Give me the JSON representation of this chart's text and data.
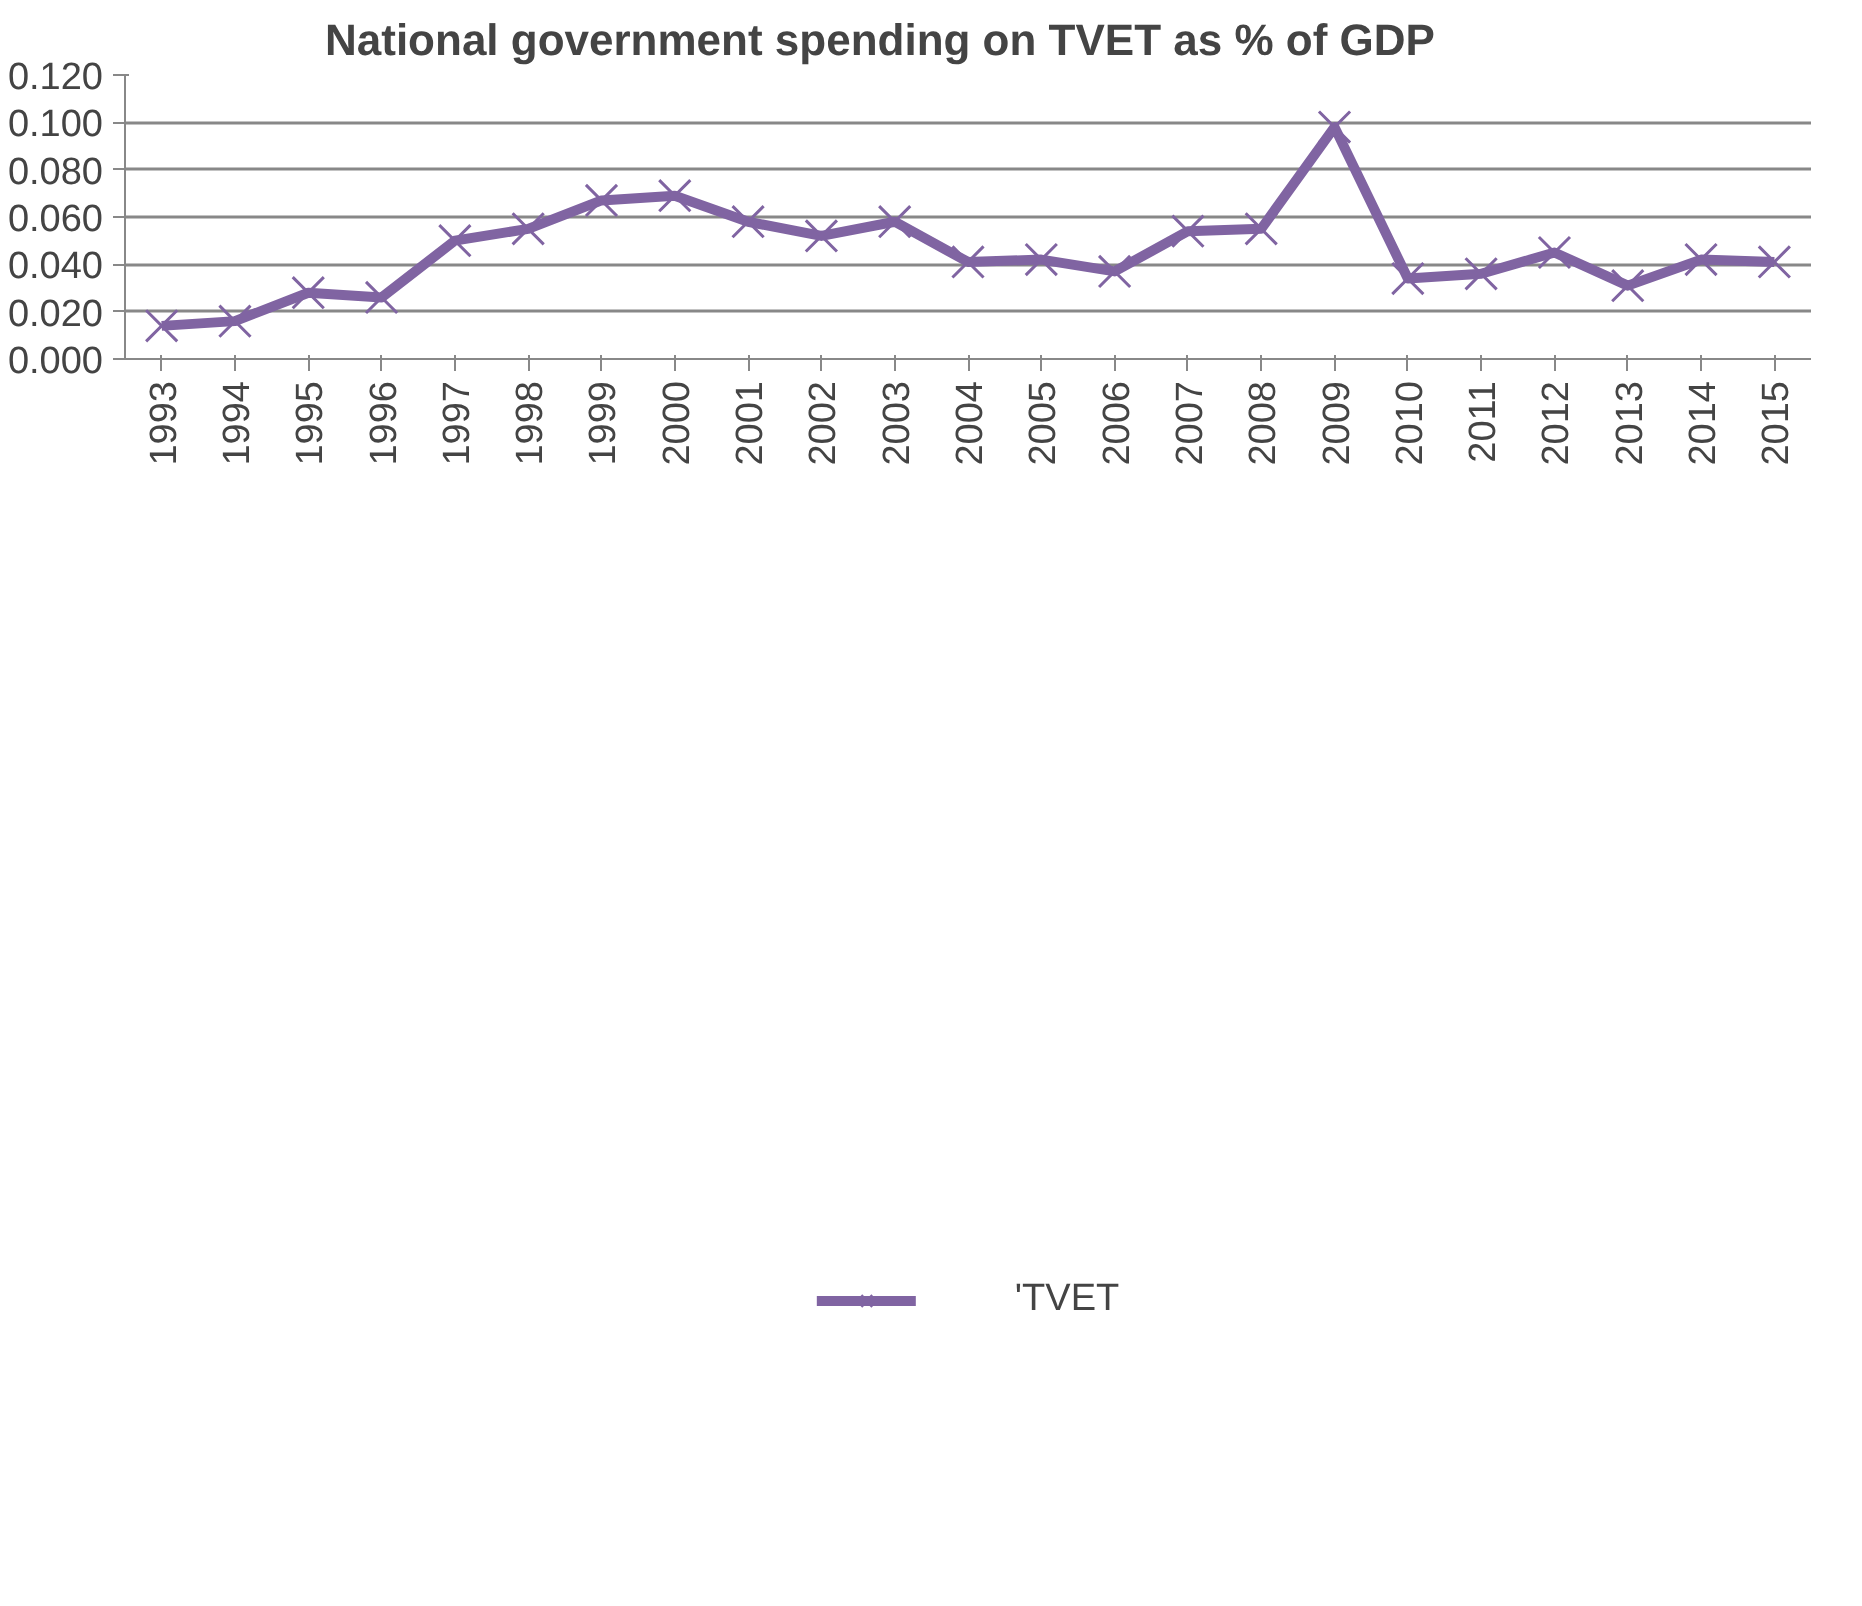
{
  "chart_data": {
    "type": "line",
    "title": "National government spending on TVET as % of GDP",
    "categories": [
      "1993",
      "1994",
      "1995",
      "1996",
      "1997",
      "1998",
      "1999",
      "2000",
      "2001",
      "2002",
      "2003",
      "2004",
      "2005",
      "2006",
      "2007",
      "2008",
      "2009",
      "2010",
      "2011",
      "2012",
      "2013",
      "2014",
      "2015"
    ],
    "series": [
      {
        "name": "'TVET",
        "color": "#8064a2",
        "values": [
          0.014,
          0.016,
          0.028,
          0.026,
          0.05,
          0.055,
          0.067,
          0.069,
          0.058,
          0.052,
          0.058,
          0.041,
          0.042,
          0.037,
          0.054,
          0.055,
          0.098,
          0.034,
          0.036,
          0.045,
          0.031,
          0.042,
          0.041
        ]
      }
    ],
    "ylim": [
      0,
      0.12
    ],
    "yticks": [
      {
        "value": 0,
        "label": "0.000"
      },
      {
        "value": 0.02,
        "label": "0.020"
      },
      {
        "value": 0.04,
        "label": "0.040"
      },
      {
        "value": 0.06,
        "label": "0.060"
      },
      {
        "value": 0.08,
        "label": "0.080"
      },
      {
        "value": 0.1,
        "label": "0.100"
      },
      {
        "value": 0.12,
        "label": "0.120"
      }
    ],
    "grid": "y",
    "legend": "bottom",
    "marker": "cross",
    "line_style": "solid"
  }
}
